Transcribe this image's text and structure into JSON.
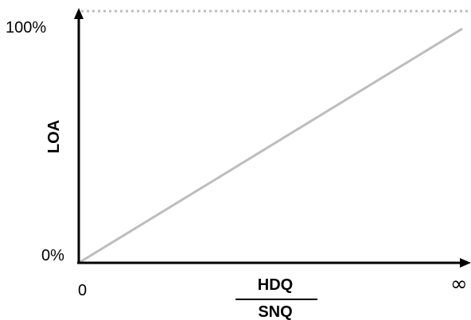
{
  "chart_data": {
    "type": "line",
    "title": "",
    "ylabel": "LOA",
    "xlabel": {
      "numerator": "HDQ",
      "denominator": "SNQ"
    },
    "x_ticks": [
      "0",
      "∞"
    ],
    "y_ticks": [
      "0%",
      "100%"
    ],
    "xlim": [
      0,
      1
    ],
    "ylim": [
      0,
      100
    ],
    "grid": false,
    "legend": "none",
    "reference_line": {
      "y": 100,
      "style": "dotted",
      "color": "#bdbdbd"
    },
    "series": [
      {
        "x": [
          0,
          1
        ],
        "y": [
          0,
          93
        ],
        "color": "#bdbdbd"
      }
    ]
  }
}
